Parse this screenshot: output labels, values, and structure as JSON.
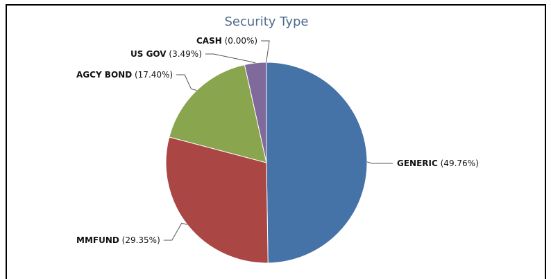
{
  "chart_data": {
    "type": "pie",
    "title": "Security Type",
    "slices": [
      {
        "label": "GENERIC",
        "value": 49.76,
        "pct_text": "(49.76%)",
        "color": "#4572a7"
      },
      {
        "label": "MMFUND",
        "value": 29.35,
        "pct_text": "(29.35%)",
        "color": "#aa4643"
      },
      {
        "label": "AGCY BOND",
        "value": 17.4,
        "pct_text": "(17.40%)",
        "color": "#89a54e"
      },
      {
        "label": "US GOV",
        "value": 3.49,
        "pct_text": "(3.49%)",
        "color": "#80699b"
      },
      {
        "label": "CASH",
        "value": 0.0,
        "pct_text": "(0.00%)",
        "color": "#3d96ae"
      }
    ]
  }
}
